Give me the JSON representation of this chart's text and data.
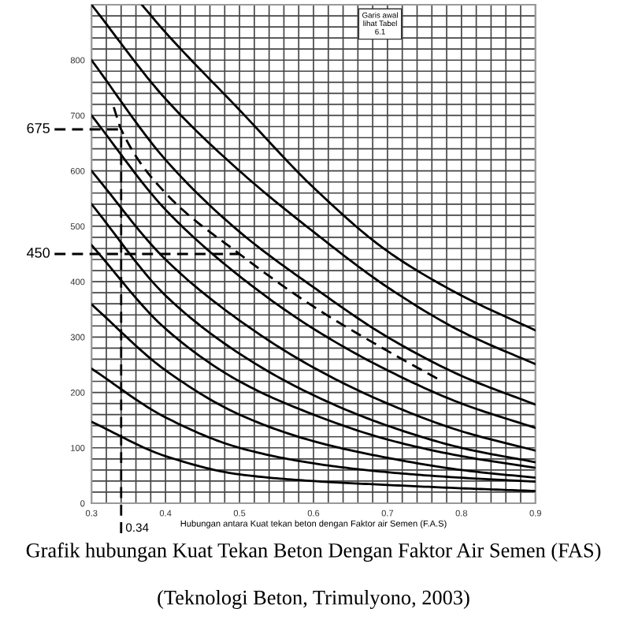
{
  "chart_data": {
    "type": "line",
    "title": "Grafik hubungan Kuat Tekan Beton Dengan Faktor Air Semen (FAS)",
    "subtitle": "(Teknologi Beton, Trimulyono, 2003)",
    "xlabel": "Hubungan antara Kuat tekan beton dengan Faktor air Semen (F.A.S)",
    "annotations": [
      "Garis awal\nlihat Tabel\n6.1"
    ],
    "xlim": [
      0.3,
      0.9
    ],
    "ylim": [
      0,
      900
    ],
    "xticks": [
      0.3,
      {
        "value": 0.32,
        "label": null
      },
      {
        "value": 0.34,
        "label": null
      },
      {
        "value": 0.36,
        "label": null
      },
      {
        "value": 0.38,
        "label": null
      },
      0.4,
      {
        "value": 0.42,
        "label": null
      },
      {
        "value": 0.44,
        "label": null
      },
      {
        "value": 0.46,
        "label": null
      },
      {
        "value": 0.48,
        "label": null
      },
      0.5,
      {
        "value": 0.52,
        "label": null
      },
      {
        "value": 0.54,
        "label": null
      },
      {
        "value": 0.56,
        "label": null
      },
      {
        "value": 0.58,
        "label": null
      },
      0.6,
      {
        "value": 0.62,
        "label": null
      },
      {
        "value": 0.64,
        "label": null
      },
      {
        "value": 0.66,
        "label": null
      },
      {
        "value": 0.68,
        "label": null
      },
      0.7,
      {
        "value": 0.72,
        "label": null
      },
      {
        "value": 0.74,
        "label": null
      },
      {
        "value": 0.76,
        "label": null
      },
      {
        "value": 0.78,
        "label": null
      },
      0.8,
      {
        "value": 0.82,
        "label": null
      },
      {
        "value": 0.84,
        "label": null
      },
      {
        "value": 0.86,
        "label": null
      },
      {
        "value": 0.88,
        "label": null
      },
      0.9
    ],
    "yticks": [
      0,
      {
        "value": 20,
        "label": null
      },
      {
        "value": 40,
        "label": null
      },
      {
        "value": 60,
        "label": null
      },
      {
        "value": 80,
        "label": null
      },
      100,
      {
        "value": 120,
        "label": null
      },
      {
        "value": 140,
        "label": null
      },
      {
        "value": 160,
        "label": null
      },
      {
        "value": 180,
        "label": null
      },
      200,
      {
        "value": 220,
        "label": null
      },
      {
        "value": 240,
        "label": null
      },
      {
        "value": 260,
        "label": null
      },
      {
        "value": 280,
        "label": null
      },
      300,
      {
        "value": 320,
        "label": null
      },
      {
        "value": 340,
        "label": null
      },
      {
        "value": 360,
        "label": null
      },
      {
        "value": 380,
        "label": null
      },
      400,
      {
        "value": 420,
        "label": null
      },
      {
        "value": 440,
        "label": null
      },
      {
        "value": 460,
        "label": null
      },
      {
        "value": 480,
        "label": null
      },
      500,
      {
        "value": 520,
        "label": null
      },
      {
        "value": 540,
        "label": null
      },
      {
        "value": 560,
        "label": null
      },
      {
        "value": 580,
        "label": null
      },
      600,
      {
        "value": 620,
        "label": null
      },
      {
        "value": 640,
        "label": null
      },
      {
        "value": 660,
        "label": null
      },
      {
        "value": 680,
        "label": null
      },
      700,
      {
        "value": 720,
        "label": null
      },
      {
        "value": 740,
        "label": null
      },
      {
        "value": 760,
        "label": null
      },
      {
        "value": 780,
        "label": null
      },
      800,
      {
        "value": 820,
        "label": null
      },
      {
        "value": 840,
        "label": null
      },
      {
        "value": 860,
        "label": null
      },
      {
        "value": 880,
        "label": null
      },
      {
        "value": 900,
        "label": null
      }
    ],
    "grid": true,
    "x": [
      0.3,
      0.4,
      0.5,
      0.6,
      0.7,
      0.8,
      0.9
    ],
    "series": [
      {
        "color": "#000000",
        "x": [
          0.368,
          0.4,
          0.5,
          0.6,
          0.7,
          0.8,
          0.9
        ],
        "values": [
          900,
          850,
          710,
          570,
          455,
          375,
          312
        ]
      },
      {
        "color": "#000000",
        "values": [
          900,
          730,
          600,
          490,
          390,
          310,
          251
        ]
      },
      {
        "color": "#000000",
        "values": [
          800,
          620,
          490,
          390,
          300,
          230,
          178
        ]
      },
      {
        "color": "#000000",
        "values": [
          700,
          530,
          410,
          315,
          240,
          180,
          136
        ]
      },
      {
        "color": "#000000",
        "values": [
          600,
          440,
          330,
          245,
          180,
          130,
          95
        ]
      },
      {
        "color": "#000000",
        "values": [
          540,
          375,
          270,
          195,
          140,
          100,
          74
        ]
      },
      {
        "color": "#000000",
        "values": [
          466,
          315,
          220,
          160,
          115,
          85,
          64
        ]
      },
      {
        "color": "#000000",
        "values": [
          359,
          240,
          160,
          112,
          82,
          60,
          46
        ]
      },
      {
        "color": "#000000",
        "values": [
          243,
          155,
          100,
          72,
          56,
          46,
          39
        ]
      },
      {
        "color": "#000000",
        "values": [
          147,
          85,
          52,
          40,
          33,
          27,
          22
        ]
      },
      {
        "color": "#000000",
        "line_style": "dashed",
        "x": [
          0.33,
          0.34,
          0.4,
          0.5,
          0.6,
          0.7,
          0.77
        ],
        "values": [
          715,
          675,
          560,
          450,
          355,
          275,
          223
        ]
      }
    ],
    "ref_lines": [
      {
        "axis": "y",
        "value": 675,
        "label": "675",
        "line_style": "dashed",
        "color": "#000000"
      },
      {
        "axis": "y",
        "value": 450,
        "label": "450",
        "line_style": "dashed",
        "color": "#000000"
      },
      {
        "axis": "x",
        "value": 0.34,
        "label": "0.34",
        "line_style": "dashed",
        "color": "#000000"
      }
    ]
  }
}
